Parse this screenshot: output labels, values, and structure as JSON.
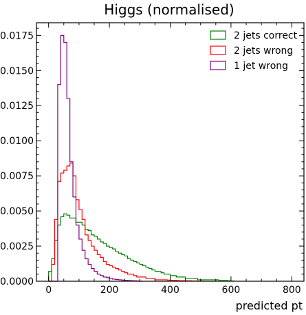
{
  "chart_data": {
    "type": "line",
    "subtype": "step-histogram",
    "title": "Higgs (normalised)",
    "xlabel": "predicted pt",
    "ylabel": "",
    "xlim": [
      -40,
      840
    ],
    "ylim": [
      0,
      0.0184
    ],
    "x_ticks": [
      0,
      200,
      400,
      600,
      800
    ],
    "x_tick_labels": [
      "0",
      "200",
      "400",
      "600",
      "800"
    ],
    "y_ticks": [
      0,
      0.0025,
      0.005,
      0.0075,
      0.01,
      0.0125,
      0.015,
      0.0175
    ],
    "y_tick_labels": [
      "0.0000",
      "0.0025",
      "0.0050",
      "0.0075",
      "0.0100",
      "0.0125",
      "0.0150",
      "0.0175"
    ],
    "grid": false,
    "legend_position": "top-right",
    "bin_width": 10,
    "series": [
      {
        "name": "2 jets correct",
        "color": "#008000",
        "x": [
          0,
          10,
          20,
          30,
          40,
          50,
          60,
          70,
          80,
          90,
          100,
          110,
          120,
          130,
          140,
          150,
          160,
          170,
          180,
          190,
          200,
          210,
          220,
          230,
          240,
          250,
          260,
          270,
          280,
          290,
          300,
          310,
          320,
          330,
          340,
          350,
          360,
          370,
          380,
          390,
          400,
          410,
          420,
          430,
          440,
          450,
          460,
          470,
          480,
          490,
          500,
          510,
          520,
          530,
          540,
          550,
          560,
          570,
          580,
          590,
          600
        ],
        "values": [
          0.0007,
          0.0016,
          0.0029,
          0.004,
          0.0046,
          0.0048,
          0.0047,
          0.0045,
          0.0045,
          0.0042,
          0.0042,
          0.004,
          0.0037,
          0.0036,
          0.0033,
          0.0032,
          0.003,
          0.0028,
          0.0027,
          0.0025,
          0.0024,
          0.0023,
          0.0021,
          0.002,
          0.0019,
          0.0018,
          0.0016,
          0.0015,
          0.0014,
          0.0013,
          0.0012,
          0.0011,
          0.001,
          0.0009,
          0.0008,
          0.0007,
          0.0007,
          0.0006,
          0.0005,
          0.0005,
          0.0004,
          0.0004,
          0.0003,
          0.0003,
          0.0003,
          0.0002,
          0.0002,
          0.0002,
          0.0002,
          0.0001,
          0.0001,
          0.0001,
          0.0001,
          0.0001,
          0.0001,
          0.0001,
          5e-05,
          5e-05,
          5e-05,
          3e-05,
          2e-05
        ]
      },
      {
        "name": "2 jets wrong",
        "color": "#ff0000",
        "x": [
          0,
          10,
          20,
          30,
          40,
          50,
          60,
          70,
          80,
          90,
          100,
          110,
          120,
          130,
          140,
          150,
          160,
          170,
          180,
          190,
          200,
          210,
          220,
          230,
          240,
          250,
          260,
          270,
          280,
          290,
          300,
          310,
          320,
          330,
          340,
          350,
          360,
          370,
          380,
          390,
          400,
          410,
          420,
          430,
          440,
          450,
          460,
          470,
          480,
          490,
          500
        ],
        "values": [
          0.0,
          0.0012,
          0.0044,
          0.0071,
          0.0077,
          0.0079,
          0.0082,
          0.0084,
          0.0075,
          0.0058,
          0.0051,
          0.0044,
          0.0033,
          0.0029,
          0.0025,
          0.0022,
          0.0019,
          0.0017,
          0.0014,
          0.0012,
          0.0011,
          0.001,
          0.0009,
          0.0008,
          0.0007,
          0.0006,
          0.0005,
          0.0005,
          0.0004,
          0.0003,
          0.0003,
          0.0003,
          0.0002,
          0.0002,
          0.0002,
          0.0001,
          0.0001,
          0.0001,
          0.0001,
          8e-05,
          7e-05,
          6e-05,
          5e-05,
          4e-05,
          4e-05,
          3e-05,
          3e-05,
          2e-05,
          2e-05,
          1e-05,
          1e-05
        ]
      },
      {
        "name": "1 jet wrong",
        "color": "#800080",
        "x": [
          0,
          10,
          20,
          30,
          40,
          50,
          60,
          70,
          80,
          90,
          100,
          110,
          120,
          130,
          140,
          150,
          160,
          170,
          180,
          190,
          200,
          210,
          220,
          230,
          240,
          250,
          260,
          270,
          280,
          290,
          300
        ],
        "values": [
          0.0,
          0.0,
          0.0,
          0.014,
          0.0175,
          0.017,
          0.013,
          0.0085,
          0.006,
          0.004,
          0.003,
          0.0022,
          0.0016,
          0.0012,
          0.0009,
          0.0007,
          0.0005,
          0.0004,
          0.0003,
          0.00025,
          0.0002,
          0.00015,
          0.00012,
          0.0001,
          8e-05,
          6e-05,
          5e-05,
          4e-05,
          3e-05,
          2e-05,
          0.0
        ]
      }
    ]
  }
}
